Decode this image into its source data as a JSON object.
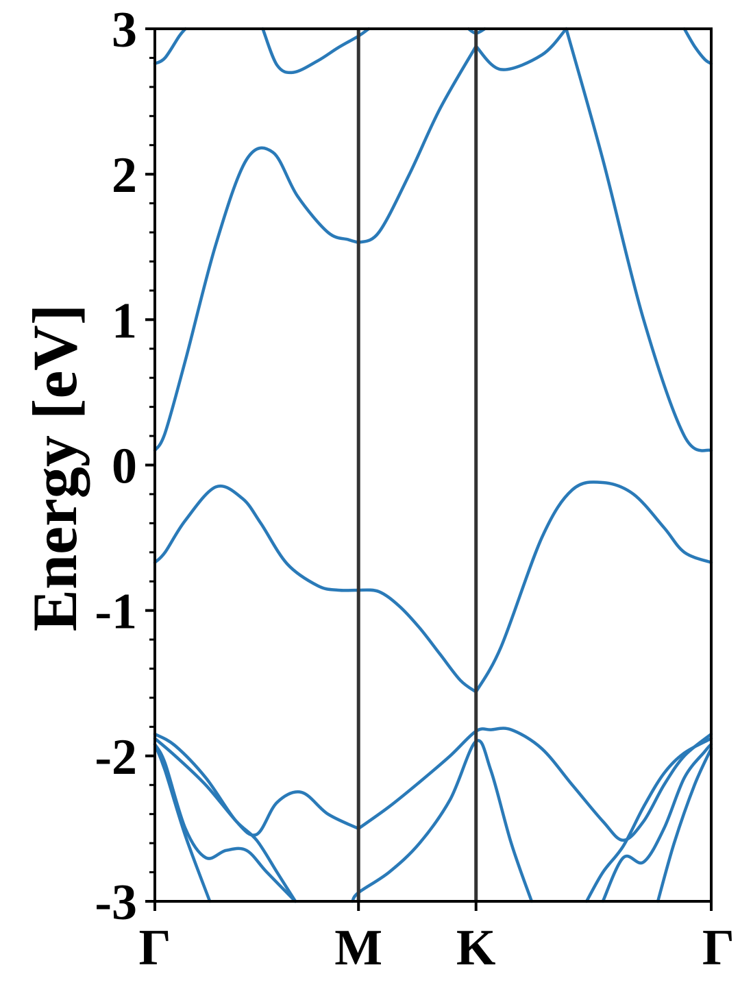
{
  "chart_data": {
    "type": "line",
    "title": "",
    "ylabel": "Energy [eV]",
    "xlabel": "",
    "ylim": [
      -3,
      3
    ],
    "xlim": [
      0,
      2.732
    ],
    "grid": false,
    "legend": "none",
    "y_ticks": [
      {
        "value": 3,
        "label": "3"
      },
      {
        "value": 2,
        "label": "2"
      },
      {
        "value": 1,
        "label": "1"
      },
      {
        "value": 0,
        "label": "0"
      },
      {
        "value": -1,
        "label": "-1"
      },
      {
        "value": -2,
        "label": "-2"
      },
      {
        "value": -3,
        "label": "-3"
      }
    ],
    "y_minor_step": 0.2,
    "x_ticks": [
      {
        "value": 0,
        "label": "Γ"
      },
      {
        "value": 1.0,
        "label": "M"
      },
      {
        "value": 1.577,
        "label": "K"
      },
      {
        "value": 2.732,
        "label": "Γ"
      }
    ],
    "line_color": "#2a7ab8",
    "divider_color": "#333333",
    "series": [
      {
        "x": [
          0,
          0.05,
          0.15,
          0.3,
          0.43,
          0.52,
          0.65,
          0.8,
          0.9,
          1.0
        ],
        "y": [
          -0.67,
          -0.6,
          -0.38,
          -0.15,
          -0.23,
          -0.4,
          -0.68,
          -0.83,
          -0.86,
          -0.86
        ]
      },
      {
        "x": [
          1.0,
          1.1,
          1.2,
          1.3,
          1.4,
          1.5,
          1.577
        ],
        "y": [
          -0.86,
          -0.87,
          -0.97,
          -1.12,
          -1.3,
          -1.48,
          -1.56
        ]
      },
      {
        "x": [
          1.577,
          1.7,
          1.9,
          2.05,
          2.2,
          2.35,
          2.5,
          2.6,
          2.732
        ],
        "y": [
          -1.56,
          -1.25,
          -0.5,
          -0.17,
          -0.12,
          -0.2,
          -0.43,
          -0.6,
          -0.67
        ]
      },
      {
        "x": [
          0,
          0.05,
          0.15,
          0.3,
          0.45,
          0.58,
          0.7,
          0.85,
          0.95,
          1.0
        ],
        "y": [
          0.1,
          0.22,
          0.72,
          1.52,
          2.1,
          2.15,
          1.85,
          1.6,
          1.55,
          1.53
        ]
      },
      {
        "x": [
          1.0,
          1.1,
          1.25,
          1.4,
          1.577
        ],
        "y": [
          1.53,
          1.6,
          2.0,
          2.45,
          2.88
        ]
      },
      {
        "x": [
          1.577,
          1.7,
          1.9,
          2.02
        ],
        "y": [
          2.88,
          2.72,
          2.82,
          3.0
        ]
      },
      {
        "x": [
          2.02,
          2.2,
          2.4,
          2.6,
          2.732
        ],
        "y": [
          3.0,
          2.1,
          1.0,
          0.2,
          0.1
        ]
      },
      {
        "x": [
          0,
          0.05,
          0.12,
          0.15
        ],
        "y": [
          2.76,
          2.8,
          2.95,
          3.0
        ]
      },
      {
        "x": [
          0.53,
          0.6,
          0.68,
          0.8,
          0.9,
          1.0,
          1.05
        ],
        "y": [
          3.0,
          2.75,
          2.7,
          2.78,
          2.87,
          2.95,
          3.0
        ]
      },
      {
        "x": [
          1.54,
          1.577,
          1.62
        ],
        "y": [
          3.0,
          2.97,
          3.0
        ]
      },
      {
        "x": [
          2.6,
          2.65,
          2.7,
          2.732
        ],
        "y": [
          3.0,
          2.88,
          2.79,
          2.76
        ]
      },
      {
        "x": [
          0,
          0.1,
          0.25,
          0.4,
          0.5,
          0.6,
          0.72,
          0.85,
          1.0
        ],
        "y": [
          -1.85,
          -1.93,
          -2.15,
          -2.45,
          -2.54,
          -2.32,
          -2.25,
          -2.4,
          -2.5
        ]
      },
      {
        "x": [
          1.0,
          1.15,
          1.3,
          1.45,
          1.577,
          1.65,
          1.75,
          1.9,
          2.05,
          2.2,
          2.3,
          2.4,
          2.5,
          2.6,
          2.732
        ],
        "y": [
          -2.5,
          -2.35,
          -2.18,
          -2.0,
          -1.83,
          -1.82,
          -1.82,
          -1.95,
          -2.2,
          -2.45,
          -2.58,
          -2.45,
          -2.2,
          -2.0,
          -1.85
        ]
      },
      {
        "x": [
          0,
          0.1,
          0.25,
          0.4,
          0.5,
          0.6,
          0.69
        ],
        "y": [
          -1.88,
          -2.0,
          -2.2,
          -2.45,
          -2.58,
          -2.8,
          -3.0
        ]
      },
      {
        "x": [
          2.12,
          2.2,
          2.3,
          2.4,
          2.5,
          2.6,
          2.732
        ],
        "y": [
          -3.0,
          -2.8,
          -2.62,
          -2.35,
          -2.12,
          -1.98,
          -1.88
        ]
      },
      {
        "x": [
          0,
          0.05,
          0.15,
          0.25,
          0.35,
          0.45,
          0.55,
          0.69
        ],
        "y": [
          -1.92,
          -2.05,
          -2.5,
          -2.7,
          -2.65,
          -2.65,
          -2.8,
          -3.0
        ]
      },
      {
        "x": [
          2.2,
          2.3,
          2.4,
          2.5,
          2.6,
          2.7,
          2.732
        ],
        "y": [
          -3.0,
          -2.7,
          -2.73,
          -2.5,
          -2.15,
          -1.97,
          -1.92
        ]
      },
      {
        "x": [
          0,
          0.05,
          0.15,
          0.27
        ],
        "y": [
          -1.92,
          -2.1,
          -2.55,
          -3.0
        ]
      },
      {
        "x": [
          2.47,
          2.55,
          2.65,
          2.732
        ],
        "y": [
          -3.0,
          -2.6,
          -2.2,
          -1.95
        ]
      },
      {
        "x": [
          0.97,
          1.0,
          1.15,
          1.3,
          1.45,
          1.577,
          1.65,
          1.75,
          1.85
        ],
        "y": [
          -3.0,
          -2.94,
          -2.8,
          -2.6,
          -2.3,
          -1.9,
          -2.1,
          -2.6,
          -3.0
        ]
      }
    ]
  }
}
